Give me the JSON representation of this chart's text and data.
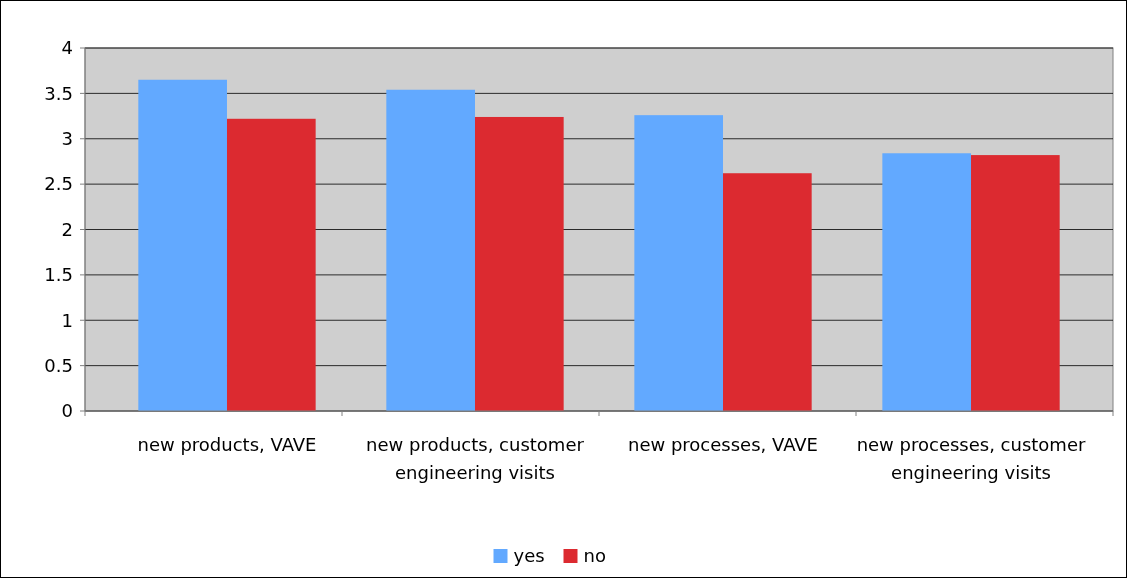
{
  "chart_data": {
    "type": "bar",
    "categories": [
      "new products, VAVE",
      "new products, customer engineering visits",
      "new processes, VAVE",
      "new processes, customer engineering visits"
    ],
    "series": [
      {
        "name": "yes",
        "color": "#62a9ff",
        "values": [
          3.65,
          3.54,
          3.26,
          2.84
        ]
      },
      {
        "name": "no",
        "color": "#dc2a30",
        "values": [
          3.22,
          3.24,
          2.62,
          2.82
        ]
      }
    ],
    "ylim": [
      0,
      4
    ],
    "yticks": [
      0,
      0.5,
      1,
      1.5,
      2,
      2.5,
      3,
      3.5,
      4
    ],
    "grid": "y",
    "legend": "bottom"
  }
}
